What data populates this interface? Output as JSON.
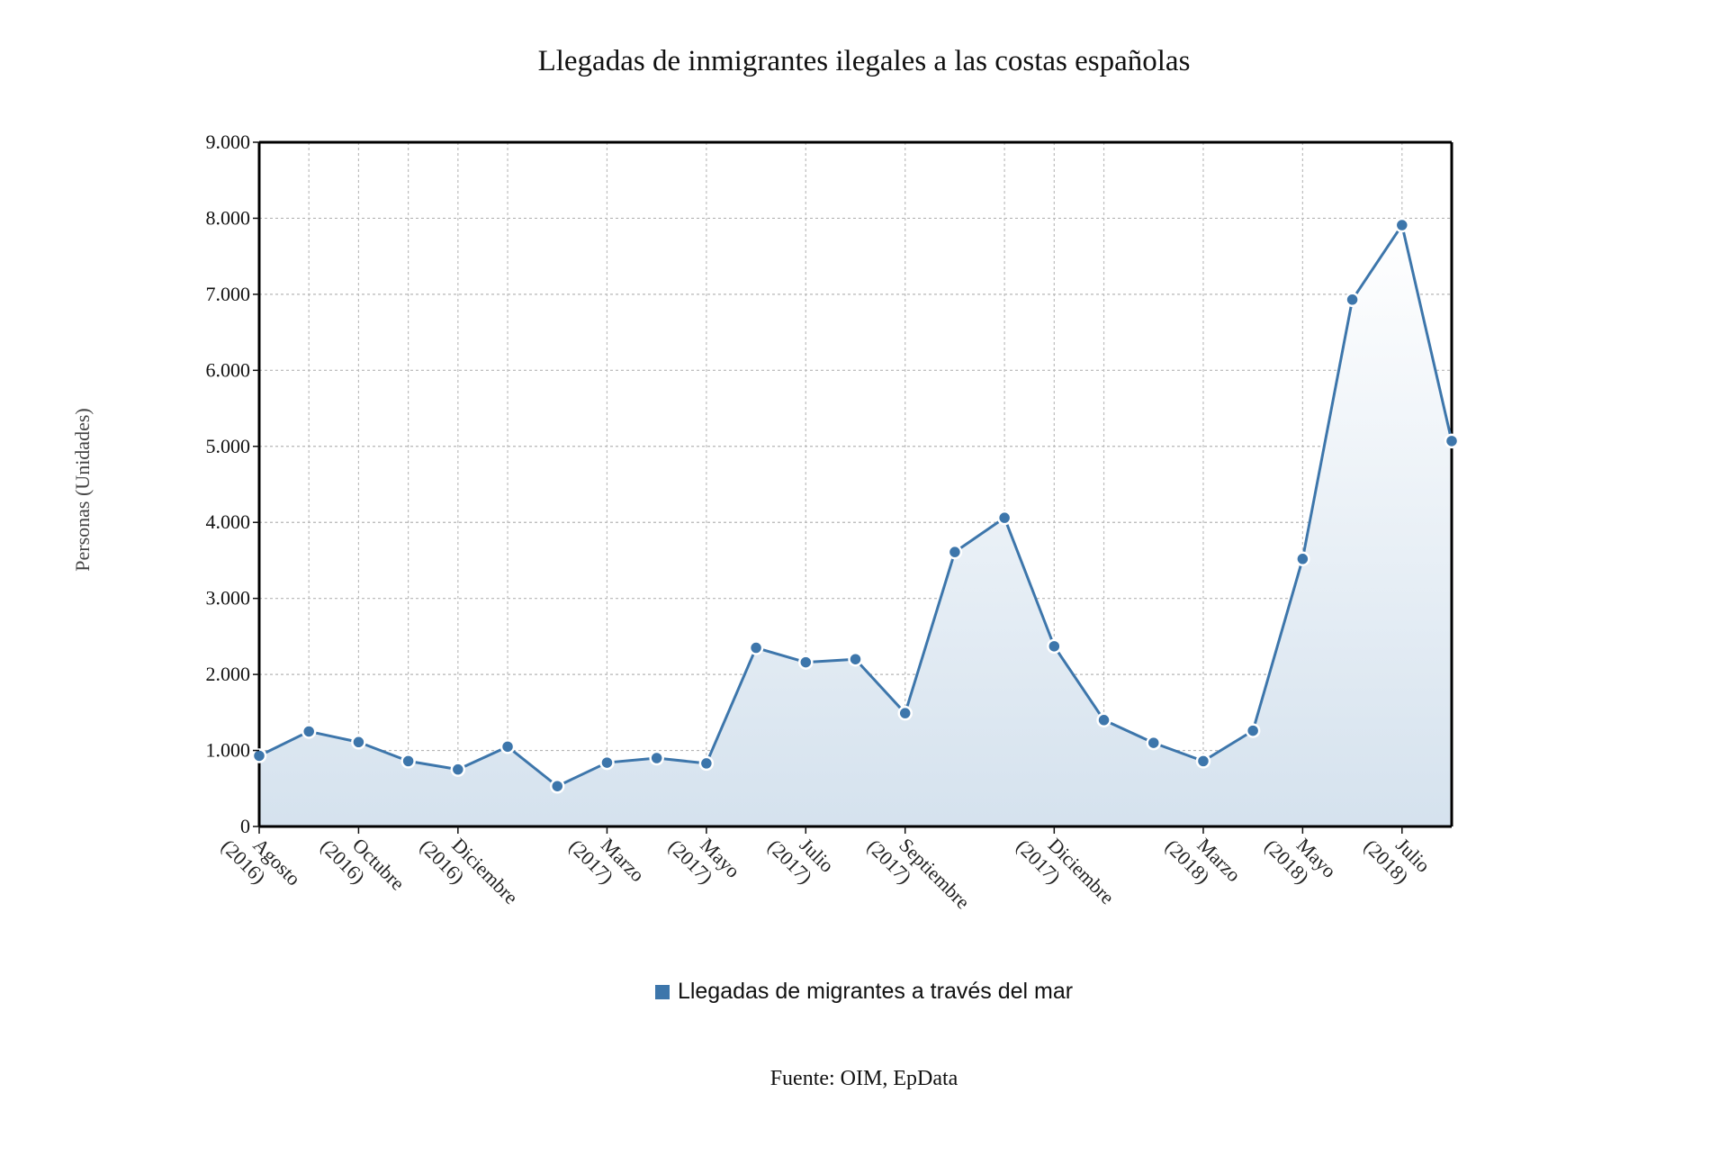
{
  "chart_data": {
    "type": "area",
    "title": "Llegadas de inmigrantes ilegales a las costas españolas",
    "ylabel": "Personas (Unidades)",
    "xlabel": "",
    "ylim": [
      0,
      9000
    ],
    "y_ticks": [
      0,
      1000,
      2000,
      3000,
      4000,
      5000,
      6000,
      7000,
      8000,
      9000
    ],
    "y_tick_labels": [
      "0",
      "1.000",
      "2.000",
      "3.000",
      "4.000",
      "5.000",
      "6.000",
      "7.000",
      "8.000",
      "9.000"
    ],
    "x": [
      "2016-08",
      "2016-09",
      "2016-10",
      "2016-11",
      "2016-12",
      "2017-01",
      "2017-02",
      "2017-03",
      "2017-04",
      "2017-05",
      "2017-06",
      "2017-07",
      "2017-08",
      "2017-09",
      "2017-10",
      "2017-11",
      "2017-12",
      "2018-01",
      "2018-02",
      "2018-03",
      "2018-04",
      "2018-05",
      "2018-06",
      "2018-07",
      "2018-08"
    ],
    "x_tick_labels": [
      {
        "date": "2016-08",
        "lines": [
          "Agosto",
          "(2016)"
        ]
      },
      {
        "date": "2016-10",
        "lines": [
          "Octubre",
          "(2016)"
        ]
      },
      {
        "date": "2016-12",
        "lines": [
          "Diciembre",
          "(2016)"
        ]
      },
      {
        "date": "2017-03",
        "lines": [
          "Marzo",
          "(2017)"
        ]
      },
      {
        "date": "2017-05",
        "lines": [
          "Mayo",
          "(2017)"
        ]
      },
      {
        "date": "2017-07",
        "lines": [
          "Julio",
          "(2017)"
        ]
      },
      {
        "date": "2017-09",
        "lines": [
          "Septiembre",
          "(2017)"
        ]
      },
      {
        "date": "2017-12",
        "lines": [
          "Diciembre",
          "(2017)"
        ]
      },
      {
        "date": "2018-03",
        "lines": [
          "Marzo",
          "(2018)"
        ]
      },
      {
        "date": "2018-05",
        "lines": [
          "Mayo",
          "(2018)"
        ]
      },
      {
        "date": "2018-07",
        "lines": [
          "Julio",
          "(2018)"
        ]
      }
    ],
    "series": [
      {
        "name": "Llegadas de migrantes a través del mar",
        "color": "#3d76ab",
        "values": [
          930,
          1250,
          1110,
          860,
          750,
          1050,
          530,
          840,
          900,
          830,
          2350,
          2160,
          2200,
          1490,
          3610,
          4060,
          2370,
          1400,
          1100,
          860,
          1260,
          3520,
          6930,
          7910,
          5070
        ]
      }
    ],
    "grid": true,
    "legend_position": "bottom-center",
    "source": "Fuente: OIM, EpData"
  }
}
